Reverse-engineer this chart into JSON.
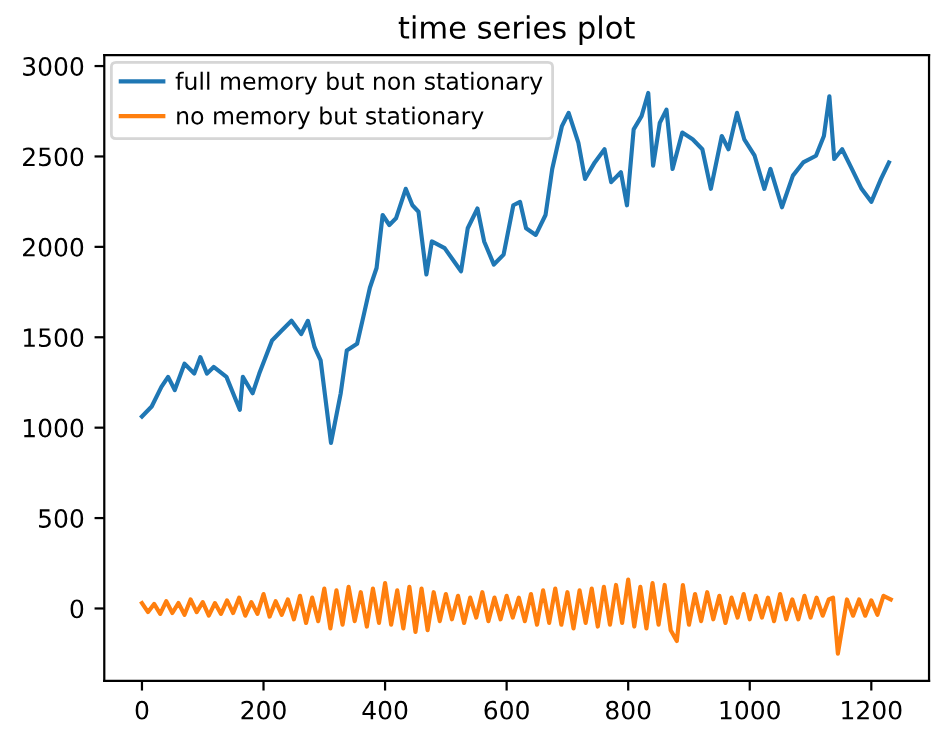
{
  "chart_data": {
    "type": "line",
    "title": "time series plot",
    "xlim": [
      -62,
      1295
    ],
    "ylim": [
      -400,
      3060
    ],
    "xticks": [
      0,
      200,
      400,
      600,
      800,
      1000,
      1200
    ],
    "yticks": [
      0,
      500,
      1000,
      1500,
      2000,
      2500,
      3000
    ],
    "grid": false,
    "legend": "top left",
    "marker": "none",
    "line_style": "solid",
    "series": [
      {
        "name": "full memory but non stationary",
        "color": "#1f77b4",
        "x": [
          0,
          16,
          32,
          43,
          54,
          70,
          86,
          96,
          107,
          118,
          139,
          161,
          166,
          182,
          193,
          214,
          230,
          246,
          262,
          273,
          284,
          294,
          311,
          327,
          337,
          354,
          364,
          375,
          386,
          396,
          407,
          418,
          434,
          445,
          455,
          468,
          477,
          498,
          525,
          536,
          552,
          563,
          579,
          595,
          611,
          622,
          632,
          648,
          664,
          675,
          691,
          702,
          718,
          729,
          745,
          761,
          772,
          788,
          798,
          809,
          822,
          833,
          841,
          852,
          863,
          873,
          889,
          906,
          922,
          936,
          954,
          965,
          979,
          991,
          1008,
          1024,
          1034,
          1053,
          1071,
          1088,
          1109,
          1122,
          1131,
          1139,
          1152,
          1168,
          1184,
          1200,
          1216,
          1229
        ],
        "values": [
          1062,
          1117,
          1226,
          1281,
          1208,
          1354,
          1300,
          1390,
          1299,
          1336,
          1281,
          1099,
          1281,
          1190,
          1299,
          1482,
          1537,
          1591,
          1518,
          1591,
          1445,
          1372,
          916,
          1190,
          1427,
          1464,
          1610,
          1774,
          1883,
          2176,
          2121,
          2158,
          2321,
          2230,
          2194,
          1847,
          2030,
          1993,
          1865,
          2103,
          2212,
          2030,
          1902,
          1957,
          2230,
          2249,
          2103,
          2066,
          2176,
          2431,
          2668,
          2741,
          2577,
          2376,
          2467,
          2540,
          2358,
          2413,
          2230,
          2650,
          2723,
          2851,
          2449,
          2686,
          2759,
          2431,
          2632,
          2595,
          2540,
          2321,
          2613,
          2540,
          2741,
          2595,
          2504,
          2321,
          2431,
          2219,
          2394,
          2467,
          2504,
          2613,
          2833,
          2486,
          2540,
          2431,
          2321,
          2249,
          2376,
          2467
        ]
      },
      {
        "name": "no memory but stationary",
        "color": "#ff7f0e",
        "x": [
          0,
          10,
          20,
          30,
          40,
          50,
          60,
          70,
          80,
          90,
          100,
          110,
          120,
          130,
          140,
          150,
          160,
          170,
          180,
          190,
          200,
          210,
          220,
          230,
          240,
          250,
          260,
          270,
          280,
          290,
          300,
          310,
          320,
          330,
          340,
          350,
          360,
          370,
          380,
          390,
          400,
          410,
          420,
          430,
          440,
          450,
          460,
          470,
          480,
          490,
          500,
          510,
          520,
          530,
          540,
          550,
          560,
          570,
          580,
          590,
          600,
          610,
          620,
          630,
          640,
          650,
          660,
          670,
          680,
          690,
          700,
          710,
          720,
          730,
          740,
          750,
          760,
          770,
          780,
          790,
          800,
          810,
          820,
          830,
          840,
          850,
          860,
          870,
          880,
          890,
          900,
          910,
          920,
          930,
          940,
          950,
          960,
          970,
          980,
          990,
          1000,
          1010,
          1020,
          1030,
          1040,
          1050,
          1060,
          1070,
          1080,
          1090,
          1100,
          1110,
          1120,
          1130,
          1137,
          1145,
          1160,
          1170,
          1180,
          1190,
          1200,
          1210,
          1220,
          1232
        ],
        "values": [
          30,
          -20,
          25,
          -30,
          40,
          -25,
          30,
          -35,
          50,
          -20,
          35,
          -40,
          30,
          -30,
          45,
          -25,
          60,
          -40,
          35,
          -30,
          80,
          -45,
          40,
          -35,
          50,
          -60,
          70,
          -80,
          60,
          -70,
          110,
          -110,
          100,
          -90,
          120,
          -70,
          90,
          -100,
          110,
          -80,
          140,
          -90,
          100,
          -110,
          120,
          -130,
          110,
          -120,
          90,
          -70,
          80,
          -60,
          70,
          -80,
          60,
          -50,
          90,
          -70,
          60,
          -60,
          70,
          -50,
          60,
          -70,
          80,
          -90,
          100,
          -80,
          110,
          -90,
          90,
          -110,
          100,
          -80,
          110,
          -100,
          120,
          -90,
          130,
          -80,
          160,
          -100,
          120,
          -110,
          140,
          -90,
          130,
          -120,
          -180,
          130,
          -90,
          80,
          -70,
          90,
          -60,
          70,
          -80,
          60,
          -50,
          80,
          -60,
          70,
          -50,
          60,
          -70,
          80,
          -60,
          50,
          -60,
          70,
          -50,
          60,
          -40,
          50,
          60,
          -250,
          50,
          -40,
          50,
          -40,
          45,
          -35,
          70,
          50
        ]
      }
    ]
  }
}
